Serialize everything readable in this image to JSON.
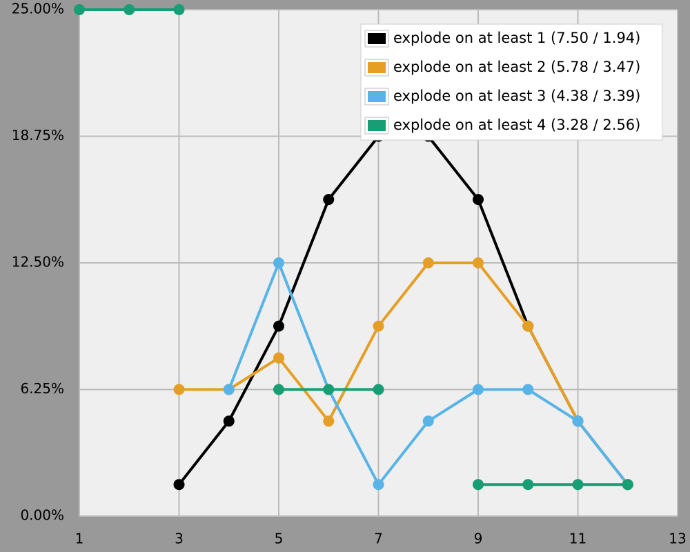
{
  "chart_data": {
    "type": "line",
    "x": [
      1,
      2,
      3,
      4,
      5,
      6,
      7,
      8,
      9,
      10,
      11,
      12
    ],
    "xlim": [
      1,
      13
    ],
    "xticks": [
      1,
      3,
      5,
      7,
      9,
      11,
      13
    ],
    "ylim": [
      0,
      25
    ],
    "yticks": [
      {
        "value": 0,
        "label": "0.00%"
      },
      {
        "value": 6.25,
        "label": "6.25%"
      },
      {
        "value": 12.5,
        "label": "12.50%"
      },
      {
        "value": 18.75,
        "label": "18.75%"
      },
      {
        "value": 25,
        "label": "25.00%"
      }
    ],
    "grid": true,
    "legend": "top-right",
    "series": [
      {
        "name": "explode on at least 1 (7.50 / 1.94)",
        "color": "#000000",
        "values": [
          null,
          null,
          1.56,
          4.69,
          9.38,
          15.63,
          18.75,
          18.75,
          15.63,
          9.38,
          4.69,
          1.56
        ]
      },
      {
        "name": "explode on at least 2 (5.78 / 3.47)",
        "color": "#e69f25",
        "values": [
          null,
          null,
          6.25,
          6.25,
          7.81,
          4.69,
          9.38,
          12.5,
          12.5,
          9.38,
          4.69,
          1.56
        ]
      },
      {
        "name": "explode on at least 3 (4.38 / 3.39)",
        "color": "#58b4e6",
        "values": [
          null,
          null,
          null,
          6.25,
          12.5,
          6.25,
          1.56,
          4.69,
          6.25,
          6.25,
          4.69,
          1.56
        ]
      },
      {
        "name": "explode on at least 4 (3.28 / 2.56)",
        "color": "#179e74",
        "values": [
          25,
          25,
          25,
          null,
          6.25,
          6.25,
          6.25,
          null,
          1.56,
          1.56,
          1.56,
          1.56
        ]
      }
    ]
  }
}
